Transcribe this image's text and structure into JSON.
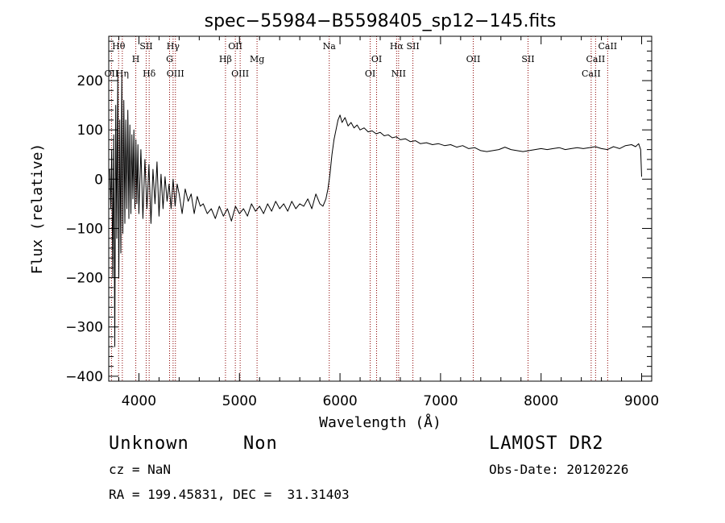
{
  "chart_data": {
    "type": "line",
    "title": "spec−55984−B5598405_sp12−145.fits",
    "xlabel": "Wavelength (Å)",
    "ylabel": "Flux (relative)",
    "xlim": [
      3700,
      9100
    ],
    "ylim": [
      -410,
      290
    ],
    "x_ticks": [
      {
        "value": 4000,
        "label": "4000"
      },
      {
        "value": 5000,
        "label": "5000"
      },
      {
        "value": 6000,
        "label": "6000"
      },
      {
        "value": 7000,
        "label": "7000"
      },
      {
        "value": 8000,
        "label": "8000"
      },
      {
        "value": 9000,
        "label": "9000"
      }
    ],
    "y_ticks": [
      {
        "value": 200,
        "label": "200"
      },
      {
        "value": 100,
        "label": "100"
      },
      {
        "value": 0,
        "label": "0"
      },
      {
        "value": -100,
        "label": "−100"
      },
      {
        "value": -200,
        "label": "−200"
      },
      {
        "value": -300,
        "label": "−300"
      },
      {
        "value": -400,
        "label": "−400"
      }
    ],
    "line_color": "#000000",
    "marker_color": "#8b0000",
    "line_markers": [
      {
        "label": "Hθ",
        "wavelength": 3798,
        "row": 0
      },
      {
        "label": "OII",
        "wavelength": 3727,
        "row": 2
      },
      {
        "label": "Hη",
        "wavelength": 3835,
        "row": 2
      },
      {
        "label": "H",
        "wavelength": 3969,
        "row": 1
      },
      {
        "label": "SII",
        "wavelength": 4072,
        "row": 0
      },
      {
        "label": "Hδ",
        "wavelength": 4102,
        "row": 2
      },
      {
        "label": "Hγ",
        "wavelength": 4340,
        "row": 0
      },
      {
        "label": "G",
        "wavelength": 4305,
        "row": 1
      },
      {
        "label": "OIII",
        "wavelength": 4363,
        "row": 2
      },
      {
        "label": "OII",
        "wavelength": 4959,
        "row": 0
      },
      {
        "label": "Hβ",
        "wavelength": 4861,
        "row": 1
      },
      {
        "label": "OIII",
        "wavelength": 5007,
        "row": 2
      },
      {
        "label": "Mg",
        "wavelength": 5175,
        "row": 1
      },
      {
        "label": "Na",
        "wavelength": 5893,
        "row": 0
      },
      {
        "label": "OI",
        "wavelength": 6364,
        "row": 1
      },
      {
        "label": "OI",
        "wavelength": 6300,
        "row": 2
      },
      {
        "label": "Hα",
        "wavelength": 6563,
        "row": 0
      },
      {
        "label": "SII",
        "wavelength": 6725,
        "row": 0
      },
      {
        "label": "NII",
        "wavelength": 6583,
        "row": 2
      },
      {
        "label": "OII",
        "wavelength": 7325,
        "row": 1
      },
      {
        "label": "SII",
        "wavelength": 7870,
        "row": 1
      },
      {
        "label": "CaII",
        "wavelength": 8662,
        "row": 0
      },
      {
        "label": "CaII",
        "wavelength": 8542,
        "row": 1
      },
      {
        "label": "CaII",
        "wavelength": 8498,
        "row": 2
      }
    ],
    "series": [
      {
        "points": [
          [
            3710,
            20
          ],
          [
            3720,
            -60
          ],
          [
            3730,
            60
          ],
          [
            3740,
            -200
          ],
          [
            3750,
            90
          ],
          [
            3760,
            -340
          ],
          [
            3770,
            150
          ],
          [
            3780,
            -120
          ],
          [
            3790,
            210
          ],
          [
            3800,
            -200
          ],
          [
            3810,
            120
          ],
          [
            3820,
            -150
          ],
          [
            3830,
            210
          ],
          [
            3840,
            -110
          ],
          [
            3850,
            160
          ],
          [
            3860,
            -90
          ],
          [
            3870,
            120
          ],
          [
            3880,
            -60
          ],
          [
            3890,
            140
          ],
          [
            3900,
            -80
          ],
          [
            3910,
            110
          ],
          [
            3920,
            -70
          ],
          [
            3930,
            90
          ],
          [
            3940,
            -40
          ],
          [
            3950,
            100
          ],
          [
            3960,
            -60
          ],
          [
            3970,
            80
          ],
          [
            3980,
            -50
          ],
          [
            3990,
            70
          ],
          [
            4000,
            -70
          ],
          [
            4020,
            60
          ],
          [
            4040,
            -80
          ],
          [
            4060,
            40
          ],
          [
            4080,
            -60
          ],
          [
            4100,
            30
          ],
          [
            4120,
            -90
          ],
          [
            4140,
            20
          ],
          [
            4160,
            -50
          ],
          [
            4180,
            35
          ],
          [
            4200,
            -75
          ],
          [
            4220,
            10
          ],
          [
            4240,
            -60
          ],
          [
            4260,
            5
          ],
          [
            4280,
            -45
          ],
          [
            4300,
            -10
          ],
          [
            4320,
            -60
          ],
          [
            4340,
            0
          ],
          [
            4360,
            -55
          ],
          [
            4380,
            -10
          ],
          [
            4400,
            -30
          ],
          [
            4430,
            -70
          ],
          [
            4460,
            -20
          ],
          [
            4490,
            -45
          ],
          [
            4520,
            -30
          ],
          [
            4550,
            -70
          ],
          [
            4580,
            -35
          ],
          [
            4610,
            -55
          ],
          [
            4640,
            -50
          ],
          [
            4680,
            -70
          ],
          [
            4720,
            -60
          ],
          [
            4760,
            -80
          ],
          [
            4800,
            -55
          ],
          [
            4840,
            -75
          ],
          [
            4880,
            -60
          ],
          [
            4920,
            -85
          ],
          [
            4960,
            -55
          ],
          [
            5000,
            -70
          ],
          [
            5040,
            -60
          ],
          [
            5080,
            -75
          ],
          [
            5120,
            -50
          ],
          [
            5160,
            -65
          ],
          [
            5200,
            -55
          ],
          [
            5240,
            -70
          ],
          [
            5280,
            -50
          ],
          [
            5320,
            -65
          ],
          [
            5360,
            -45
          ],
          [
            5400,
            -60
          ],
          [
            5440,
            -50
          ],
          [
            5480,
            -65
          ],
          [
            5520,
            -45
          ],
          [
            5560,
            -60
          ],
          [
            5600,
            -50
          ],
          [
            5640,
            -55
          ],
          [
            5680,
            -40
          ],
          [
            5720,
            -60
          ],
          [
            5760,
            -30
          ],
          [
            5800,
            -50
          ],
          [
            5830,
            -55
          ],
          [
            5860,
            -40
          ],
          [
            5880,
            -20
          ],
          [
            5900,
            10
          ],
          [
            5920,
            50
          ],
          [
            5940,
            80
          ],
          [
            5960,
            100
          ],
          [
            5980,
            120
          ],
          [
            6000,
            130
          ],
          [
            6020,
            115
          ],
          [
            6050,
            125
          ],
          [
            6080,
            108
          ],
          [
            6110,
            115
          ],
          [
            6140,
            104
          ],
          [
            6170,
            110
          ],
          [
            6200,
            100
          ],
          [
            6240,
            104
          ],
          [
            6280,
            96
          ],
          [
            6320,
            98
          ],
          [
            6360,
            92
          ],
          [
            6400,
            95
          ],
          [
            6440,
            88
          ],
          [
            6480,
            90
          ],
          [
            6520,
            84
          ],
          [
            6560,
            86
          ],
          [
            6600,
            80
          ],
          [
            6650,
            82
          ],
          [
            6700,
            76
          ],
          [
            6750,
            78
          ],
          [
            6800,
            72
          ],
          [
            6860,
            74
          ],
          [
            6920,
            70
          ],
          [
            6980,
            72
          ],
          [
            7040,
            68
          ],
          [
            7100,
            70
          ],
          [
            7160,
            65
          ],
          [
            7220,
            68
          ],
          [
            7280,
            62
          ],
          [
            7340,
            64
          ],
          [
            7400,
            58
          ],
          [
            7460,
            56
          ],
          [
            7520,
            58
          ],
          [
            7580,
            60
          ],
          [
            7640,
            65
          ],
          [
            7700,
            60
          ],
          [
            7760,
            58
          ],
          [
            7820,
            56
          ],
          [
            7880,
            58
          ],
          [
            7940,
            60
          ],
          [
            8000,
            62
          ],
          [
            8060,
            60
          ],
          [
            8120,
            62
          ],
          [
            8180,
            64
          ],
          [
            8240,
            60
          ],
          [
            8300,
            62
          ],
          [
            8360,
            64
          ],
          [
            8420,
            62
          ],
          [
            8480,
            64
          ],
          [
            8540,
            66
          ],
          [
            8600,
            62
          ],
          [
            8660,
            60
          ],
          [
            8720,
            66
          ],
          [
            8780,
            62
          ],
          [
            8840,
            68
          ],
          [
            8900,
            70
          ],
          [
            8940,
            66
          ],
          [
            8970,
            72
          ],
          [
            8990,
            60
          ],
          [
            9000,
            5
          ]
        ]
      }
    ]
  },
  "footer": {
    "object_class": "Unknown",
    "object_subclass": "Non",
    "redshift": "cz = NaN",
    "coordinates": "RA = 199.45831, DEC =  31.31403",
    "survey": "LAMOST DR2",
    "obs_date": "Obs-Date: 20120226"
  }
}
